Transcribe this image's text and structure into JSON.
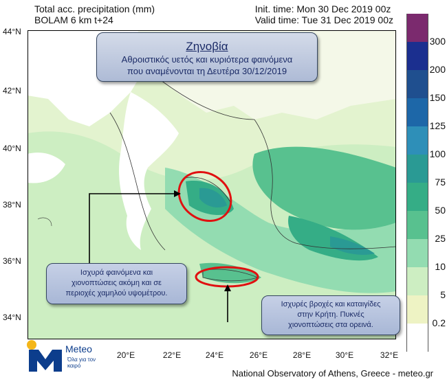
{
  "header": {
    "left_line1": "Total acc. precipitation (mm)",
    "left_line2": "BOLAM 6 km t+24",
    "right_line1": "Init. time: Mon 30 Dec 2019 00z",
    "right_line2": "Valid time: Tue 31 Dec 2019 00z"
  },
  "title_box": {
    "name": "Ζηνοβία",
    "line1": "Αθροιστικός υετός και κυριότερα φαινόμενα",
    "line2": "που αναμένονται τη Δευτέρα 30/12/2019"
  },
  "note_left": {
    "line1": "Ισχυρά φαινόμενα και",
    "line2": "χιονοπτώσεις ακόμη και σε",
    "line3": "περιοχές χαμηλού υψομέτρου."
  },
  "note_right": {
    "line1": "Ισχυρές βροχές και καταιγίδες",
    "line2": "στην Κρήτη. Πυκνές",
    "line3": "χιονοπτώσεις στα ορεινά."
  },
  "lat_ticks": [
    "44°N",
    "42°N",
    "40°N",
    "38°N",
    "36°N",
    "34°N"
  ],
  "lon_ticks": [
    "20°E",
    "22°E",
    "24°E",
    "26°E",
    "28°E",
    "30°E",
    "32°E"
  ],
  "legend": {
    "labels": [
      "300",
      "200",
      "150",
      "125",
      "100",
      "75",
      "50",
      "25",
      "10",
      "5",
      "0.2"
    ],
    "colors": [
      "#7b2a6e",
      "#1b2f8f",
      "#1f4f8f",
      "#1d67a8",
      "#2e8fb8",
      "#2a9a94",
      "#35ad86",
      "#58c18f",
      "#93dcb1",
      "#cdeec2",
      "#eef3c4",
      "#ffffff"
    ]
  },
  "logo": {
    "name": "Meteo",
    "subtitle": "Όλα για τον καιρό"
  },
  "footer": "National Observatory of Athens, Greece - meteo.gr"
}
